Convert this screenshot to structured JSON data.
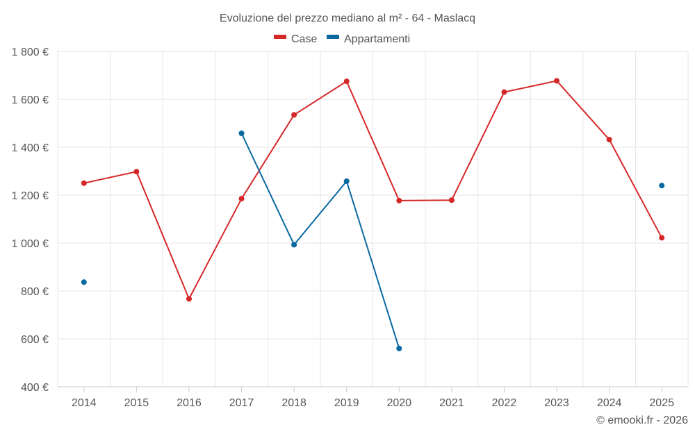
{
  "chart_data": {
    "type": "line",
    "title": "Evoluzione del prezzo mediano al m² - 64 - Maslacq",
    "categories": [
      "2014",
      "2015",
      "2016",
      "2017",
      "2018",
      "2019",
      "2020",
      "2021",
      "2022",
      "2023",
      "2024",
      "2025"
    ],
    "series": [
      {
        "name": "Case",
        "color": "#d62728",
        "values": [
          1250,
          1298,
          767,
          1185,
          1535,
          1675,
          1177,
          1179,
          1630,
          1677,
          1432,
          1022
        ]
      },
      {
        "name": "Appartamenti",
        "color": "#0868a0",
        "values": [
          837,
          null,
          null,
          1458,
          993,
          1258,
          560,
          null,
          null,
          null,
          null,
          1240
        ]
      }
    ],
    "ylim": [
      400,
      1800
    ],
    "yticks": [
      400,
      600,
      800,
      1000,
      1200,
      1400,
      1600,
      1800
    ],
    "ytick_labels": [
      "400 €",
      "600 €",
      "800 €",
      "1 000 €",
      "1 200 €",
      "1 400 €",
      "1 600 €",
      "1 800 €"
    ],
    "xlabel": "",
    "ylabel": "",
    "legend": "top-center",
    "grid": true
  },
  "credit": "© emooki.fr - 2026"
}
